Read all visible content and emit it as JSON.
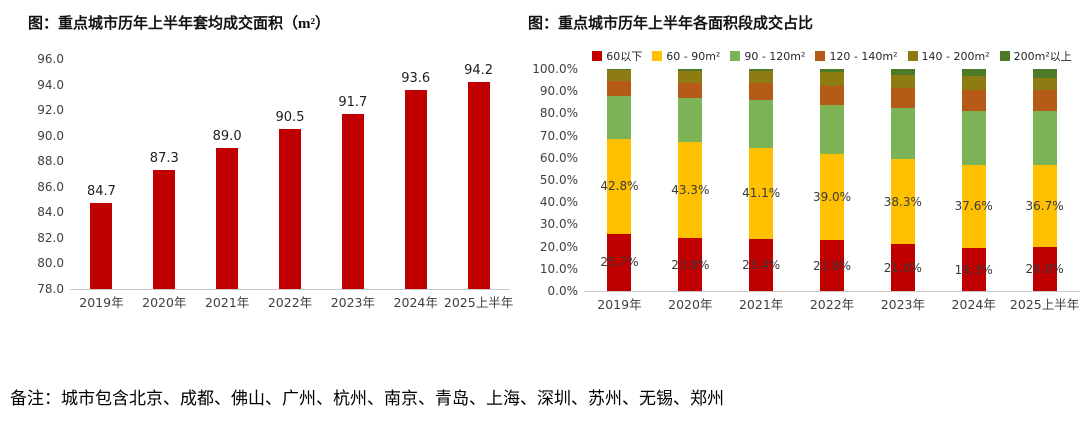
{
  "note": "备注：城市包含北京、成都、佛山、广州、杭州、南京、青岛、上海、深圳、苏州、无锡、郑州",
  "colors": {
    "bar_red": "#c00000",
    "yellow": "#ffc000",
    "green": "#7cb357",
    "orange_brown": "#b65b17",
    "olive": "#8e7b11",
    "dark_green": "#4c7a28",
    "axis_line": "#c8c8c8",
    "tick_text": "#3f3f3f",
    "title_text": "#111111"
  },
  "chart_data": [
    {
      "type": "bar",
      "title": "图：重点城市历年上半年套均成交面积（m²）",
      "categories": [
        "2019年",
        "2020年",
        "2021年",
        "2022年",
        "2023年",
        "2024年",
        "2025上半年"
      ],
      "values": [
        84.7,
        87.3,
        89.0,
        90.5,
        91.7,
        93.6,
        94.2
      ],
      "value_labels": [
        "84.7",
        "87.3",
        "89.0",
        "90.5",
        "91.7",
        "93.6",
        "94.2"
      ],
      "bar_color": "#c00000",
      "ylim": [
        78.0,
        96.0
      ],
      "yticks": [
        "96.0",
        "94.0",
        "92.0",
        "90.0",
        "88.0",
        "86.0",
        "84.0",
        "82.0",
        "80.0",
        "78.0"
      ],
      "xlabel": "",
      "ylabel": "",
      "grid": false,
      "legend_position": "none"
    },
    {
      "type": "stacked-bar-100",
      "title": "图：重点城市历年上半年各面积段成交占比",
      "categories": [
        "2019年",
        "2020年",
        "2021年",
        "2022年",
        "2023年",
        "2024年",
        "2025上半年"
      ],
      "series": [
        {
          "name": "60以下",
          "color": "#c00000",
          "values": [
            25.7,
            23.8,
            23.4,
            22.8,
            21.0,
            19.3,
            20.0
          ],
          "data_labels": [
            "25.7%",
            "23.8%",
            "23.4%",
            "22.8%",
            "21.0%",
            "19.3%",
            "20.0%"
          ]
        },
        {
          "name": "60 - 90m²",
          "color": "#ffc000",
          "values": [
            42.8,
            43.3,
            41.1,
            39.0,
            38.3,
            37.6,
            36.7
          ],
          "data_labels": [
            "42.8%",
            "43.3%",
            "41.1%",
            "39.0%",
            "38.3%",
            "37.6%",
            "36.7%"
          ]
        },
        {
          "name": "90 - 120m²",
          "color": "#7cb357",
          "values": [
            19.5,
            19.9,
            21.5,
            22.2,
            23.2,
            24.1,
            24.3
          ],
          "data_labels": null
        },
        {
          "name": "120 - 140m²",
          "color": "#b65b17",
          "values": [
            6.5,
            6.5,
            7.5,
            8.5,
            9.0,
            9.5,
            9.5
          ],
          "data_labels": null
        },
        {
          "name": "140 - 200m²",
          "color": "#8e7b11",
          "values": [
            5.0,
            5.5,
            5.5,
            6.0,
            6.0,
            6.5,
            5.5
          ],
          "data_labels": null
        },
        {
          "name": "200m²以上",
          "color": "#4c7a28",
          "values": [
            0.5,
            1.0,
            1.0,
            1.5,
            2.5,
            3.0,
            4.0
          ],
          "data_labels": null
        }
      ],
      "ylim": [
        0,
        100
      ],
      "yticks": [
        "100.0%",
        "90.0%",
        "80.0%",
        "70.0%",
        "60.0%",
        "50.0%",
        "40.0%",
        "30.0%",
        "20.0%",
        "10.0%",
        "0.0%"
      ],
      "xlabel": "",
      "ylabel": "",
      "grid": false,
      "legend_position": "top"
    }
  ]
}
